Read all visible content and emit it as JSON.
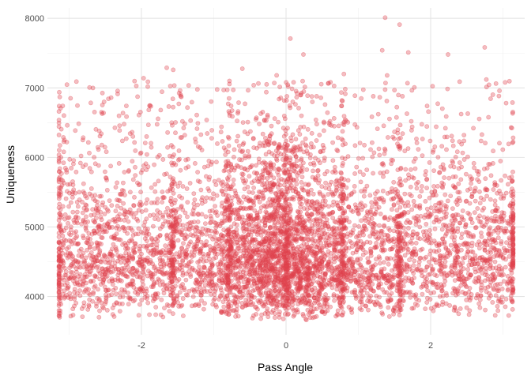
{
  "chart_data": {
    "type": "scatter",
    "title": "",
    "xlabel": "Pass Angle",
    "ylabel": "Uniqueness",
    "xlim": [
      -3.3,
      3.3
    ],
    "ylim": [
      3450,
      8150
    ],
    "x_ticks": [
      -2,
      0,
      2
    ],
    "x_tick_labels": [
      "-2",
      "0",
      "2"
    ],
    "x_minor_ticks": [
      -3,
      -1,
      1,
      3
    ],
    "y_ticks": [
      4000,
      5000,
      6000,
      7000,
      8000
    ],
    "y_tick_labels": [
      "4000",
      "5000",
      "6000",
      "7000",
      "8000"
    ],
    "y_minor_ticks": [
      4500,
      5500,
      6500,
      7500
    ],
    "grid": true,
    "legend": "none",
    "point_color": "#E0434E",
    "point_opacity": 0.35,
    "point_count": 6000,
    "series": [
      {
        "values_description_sample": "dense cloud of points; sample of outliers listed below",
        "outliers": [
          {
            "x": 1.37,
            "y": 8010
          },
          {
            "x": 1.57,
            "y": 7910
          },
          {
            "x": 0.06,
            "y": 7710
          },
          {
            "x": 1.69,
            "y": 7510
          },
          {
            "x": 2.24,
            "y": 7480
          },
          {
            "x": 0.24,
            "y": 7480
          },
          {
            "x": 1.33,
            "y": 7540
          },
          {
            "x": -1.97,
            "y": 7140
          },
          {
            "x": -1.65,
            "y": 7290
          },
          {
            "x": -1.56,
            "y": 7260
          },
          {
            "x": 2.77,
            "y": 7120
          },
          {
            "x": -2.98,
            "y": 6850
          },
          {
            "x": 3.03,
            "y": 7080
          },
          {
            "x": 0.8,
            "y": 7200
          },
          {
            "x": -0.13,
            "y": 7180
          }
        ]
      }
    ]
  }
}
